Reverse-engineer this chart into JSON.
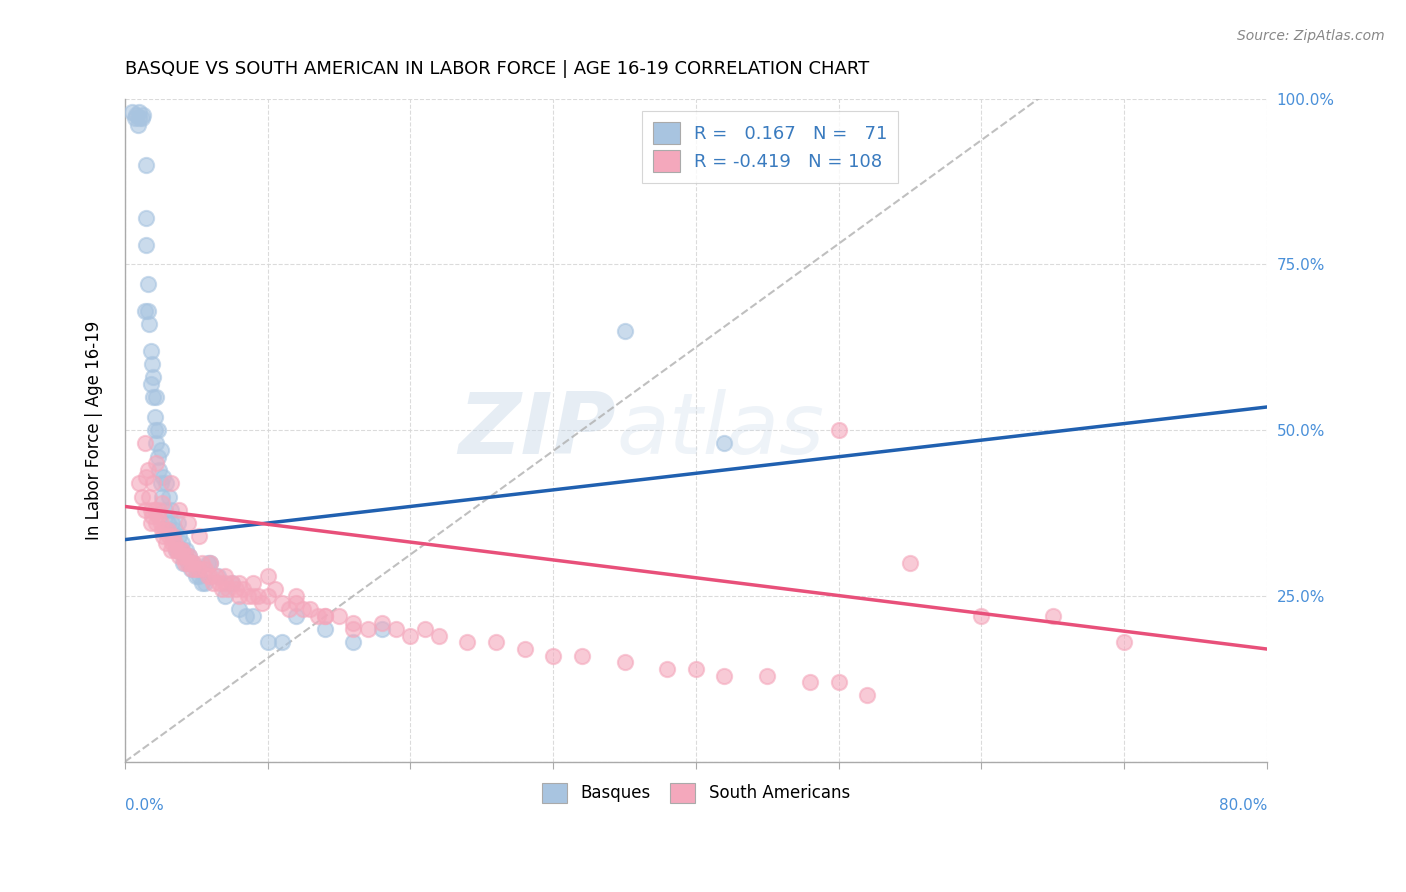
{
  "title": "BASQUE VS SOUTH AMERICAN IN LABOR FORCE | AGE 16-19 CORRELATION CHART",
  "source": "Source: ZipAtlas.com",
  "ylabel": "In Labor Force | Age 16-19",
  "xmin": 0.0,
  "xmax": 0.8,
  "ymin": 0.0,
  "ymax": 1.0,
  "right_yticklabels": [
    "25.0%",
    "50.0%",
    "75.0%",
    "100.0%"
  ],
  "right_yticks": [
    0.25,
    0.5,
    0.75,
    1.0
  ],
  "basque_R": 0.167,
  "basque_N": 71,
  "southam_R": -0.419,
  "southam_N": 108,
  "basque_color": "#a8c4e0",
  "southam_color": "#f4a8bc",
  "basque_line_color": "#2060b0",
  "southam_line_color": "#e8507a",
  "legend_text_color": "#3a7bbf",
  "watermark_text": "ZIPatlas",
  "background_color": "#ffffff",
  "grid_color": "#d8d8d8",
  "basque_x": [
    0.005,
    0.007,
    0.008,
    0.009,
    0.01,
    0.01,
    0.012,
    0.013,
    0.014,
    0.015,
    0.015,
    0.016,
    0.016,
    0.017,
    0.018,
    0.018,
    0.019,
    0.02,
    0.02,
    0.021,
    0.021,
    0.022,
    0.022,
    0.023,
    0.023,
    0.024,
    0.025,
    0.025,
    0.026,
    0.027,
    0.028,
    0.029,
    0.03,
    0.031,
    0.032,
    0.033,
    0.034,
    0.035,
    0.036,
    0.037,
    0.038,
    0.039,
    0.04,
    0.041,
    0.042,
    0.043,
    0.044,
    0.045,
    0.046,
    0.048,
    0.05,
    0.052,
    0.054,
    0.056,
    0.058,
    0.06,
    0.065,
    0.07,
    0.075,
    0.08,
    0.085,
    0.09,
    0.1,
    0.11,
    0.12,
    0.14,
    0.16,
    0.18,
    0.35,
    0.42,
    0.015
  ],
  "basque_y": [
    0.98,
    0.97,
    0.975,
    0.96,
    0.97,
    0.98,
    0.97,
    0.975,
    0.68,
    0.82,
    0.78,
    0.72,
    0.68,
    0.66,
    0.62,
    0.57,
    0.6,
    0.55,
    0.58,
    0.52,
    0.5,
    0.48,
    0.55,
    0.46,
    0.5,
    0.44,
    0.47,
    0.42,
    0.4,
    0.43,
    0.38,
    0.42,
    0.36,
    0.4,
    0.38,
    0.36,
    0.34,
    0.35,
    0.32,
    0.36,
    0.34,
    0.32,
    0.33,
    0.3,
    0.31,
    0.32,
    0.3,
    0.31,
    0.29,
    0.3,
    0.28,
    0.28,
    0.27,
    0.27,
    0.3,
    0.3,
    0.28,
    0.25,
    0.27,
    0.23,
    0.22,
    0.22,
    0.18,
    0.18,
    0.22,
    0.2,
    0.18,
    0.2,
    0.65,
    0.48,
    0.9
  ],
  "southam_x": [
    0.01,
    0.012,
    0.014,
    0.015,
    0.016,
    0.017,
    0.018,
    0.019,
    0.02,
    0.021,
    0.022,
    0.023,
    0.024,
    0.025,
    0.026,
    0.027,
    0.028,
    0.029,
    0.03,
    0.031,
    0.032,
    0.033,
    0.034,
    0.035,
    0.036,
    0.037,
    0.038,
    0.039,
    0.04,
    0.041,
    0.042,
    0.043,
    0.044,
    0.045,
    0.046,
    0.047,
    0.048,
    0.05,
    0.052,
    0.054,
    0.056,
    0.058,
    0.06,
    0.062,
    0.064,
    0.066,
    0.068,
    0.07,
    0.072,
    0.075,
    0.078,
    0.08,
    0.083,
    0.086,
    0.09,
    0.093,
    0.096,
    0.1,
    0.105,
    0.11,
    0.115,
    0.12,
    0.125,
    0.13,
    0.135,
    0.14,
    0.15,
    0.16,
    0.17,
    0.18,
    0.19,
    0.2,
    0.21,
    0.22,
    0.24,
    0.26,
    0.28,
    0.3,
    0.32,
    0.35,
    0.38,
    0.4,
    0.42,
    0.45,
    0.48,
    0.5,
    0.52,
    0.55,
    0.6,
    0.65,
    0.7,
    0.014,
    0.018,
    0.022,
    0.026,
    0.032,
    0.038,
    0.044,
    0.052,
    0.06,
    0.07,
    0.08,
    0.09,
    0.1,
    0.12,
    0.14,
    0.16,
    0.5
  ],
  "southam_y": [
    0.42,
    0.4,
    0.38,
    0.43,
    0.44,
    0.4,
    0.38,
    0.37,
    0.42,
    0.38,
    0.36,
    0.37,
    0.38,
    0.36,
    0.35,
    0.34,
    0.35,
    0.33,
    0.35,
    0.34,
    0.32,
    0.33,
    0.34,
    0.33,
    0.32,
    0.32,
    0.31,
    0.32,
    0.32,
    0.31,
    0.3,
    0.31,
    0.3,
    0.31,
    0.3,
    0.29,
    0.3,
    0.29,
    0.29,
    0.3,
    0.29,
    0.28,
    0.28,
    0.27,
    0.28,
    0.27,
    0.26,
    0.27,
    0.26,
    0.27,
    0.26,
    0.25,
    0.26,
    0.25,
    0.27,
    0.25,
    0.24,
    0.25,
    0.26,
    0.24,
    0.23,
    0.24,
    0.23,
    0.23,
    0.22,
    0.22,
    0.22,
    0.21,
    0.2,
    0.21,
    0.2,
    0.19,
    0.2,
    0.19,
    0.18,
    0.18,
    0.17,
    0.16,
    0.16,
    0.15,
    0.14,
    0.14,
    0.13,
    0.13,
    0.12,
    0.12,
    0.1,
    0.3,
    0.22,
    0.22,
    0.18,
    0.48,
    0.36,
    0.45,
    0.39,
    0.42,
    0.38,
    0.36,
    0.34,
    0.3,
    0.28,
    0.27,
    0.25,
    0.28,
    0.25,
    0.22,
    0.2,
    0.5
  ],
  "basque_trendline_x": [
    0.0,
    0.8
  ],
  "basque_trendline_y": [
    0.335,
    0.535
  ],
  "southam_trendline_x": [
    0.0,
    0.8
  ],
  "southam_trendline_y": [
    0.385,
    0.17
  ]
}
